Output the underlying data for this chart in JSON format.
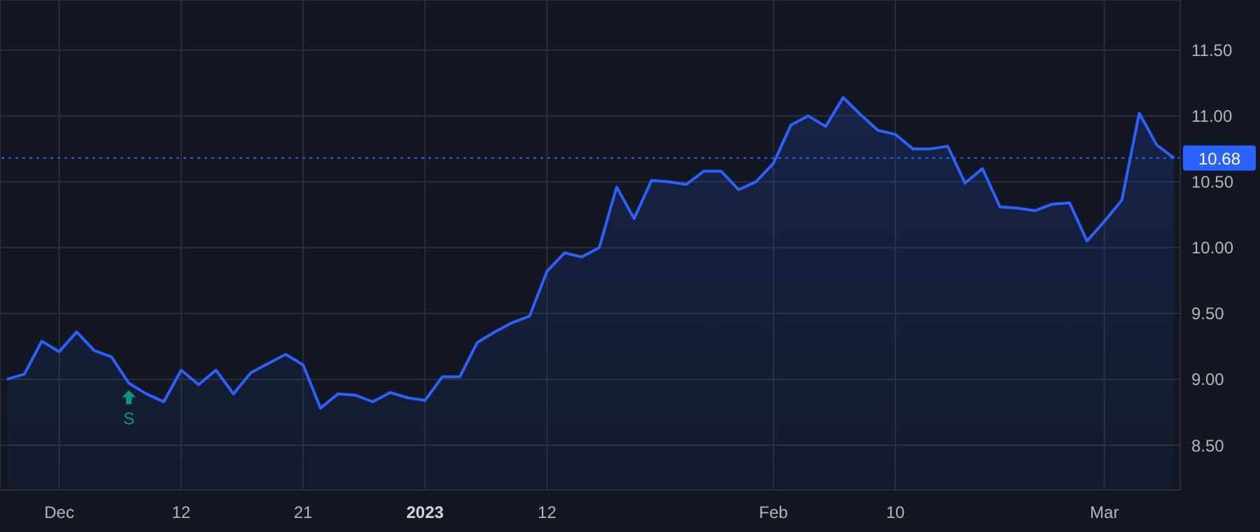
{
  "chart_data": {
    "type": "area",
    "categories": [
      null,
      null,
      null,
      "Dec",
      null,
      null,
      null,
      null,
      null,
      null,
      "12",
      null,
      null,
      null,
      null,
      null,
      null,
      "21",
      null,
      null,
      null,
      null,
      null,
      null,
      "2023",
      null,
      null,
      null,
      null,
      null,
      null,
      "12",
      null,
      null,
      null,
      null,
      null,
      null,
      null,
      null,
      null,
      null,
      null,
      null,
      "Feb",
      null,
      null,
      null,
      null,
      null,
      null,
      "10",
      null,
      null,
      null,
      null,
      null,
      null,
      null,
      null,
      null,
      null,
      null,
      "Mar",
      null,
      null,
      null,
      null
    ],
    "series": [
      {
        "color": "#2962ff",
        "values": [
          9.0,
          9.04,
          9.29,
          9.21,
          9.36,
          9.22,
          9.17,
          8.97,
          8.89,
          8.83,
          9.07,
          8.96,
          9.07,
          8.89,
          9.05,
          9.12,
          9.19,
          9.11,
          8.78,
          8.89,
          8.88,
          8.83,
          8.9,
          8.86,
          8.84,
          9.02,
          9.02,
          9.28,
          9.36,
          9.43,
          9.48,
          9.82,
          9.96,
          9.93,
          10.0,
          10.46,
          10.22,
          10.51,
          10.5,
          10.48,
          10.58,
          10.58,
          10.44,
          10.5,
          10.64,
          10.93,
          11.0,
          10.92,
          11.14,
          11.01,
          10.89,
          10.86,
          10.75,
          10.75,
          10.77,
          10.49,
          10.6,
          10.31,
          10.3,
          10.28,
          10.33,
          10.34,
          10.05,
          10.2,
          10.36,
          11.02,
          10.78,
          10.68
        ]
      }
    ],
    "ylim": [
      8.16,
      11.88
    ],
    "yticks": [
      {
        "value": 8.5,
        "label": "8.50"
      },
      {
        "value": 9,
        "label": "9.00"
      },
      {
        "value": 9.5,
        "label": "9.50"
      },
      {
        "value": 10,
        "label": "10.00"
      },
      {
        "value": 10.5,
        "label": "10.50"
      },
      {
        "value": 11,
        "label": "11.00"
      },
      {
        "value": 11.5,
        "label": "11.50"
      }
    ],
    "ref_lines": [
      {
        "axis": "y",
        "value": 10.68,
        "label": "10.68",
        "color": "#2962ff",
        "line_style": "dotted"
      }
    ],
    "annotations": [
      {
        "text": "S",
        "y": 8.97
      }
    ],
    "grid": true
  }
}
